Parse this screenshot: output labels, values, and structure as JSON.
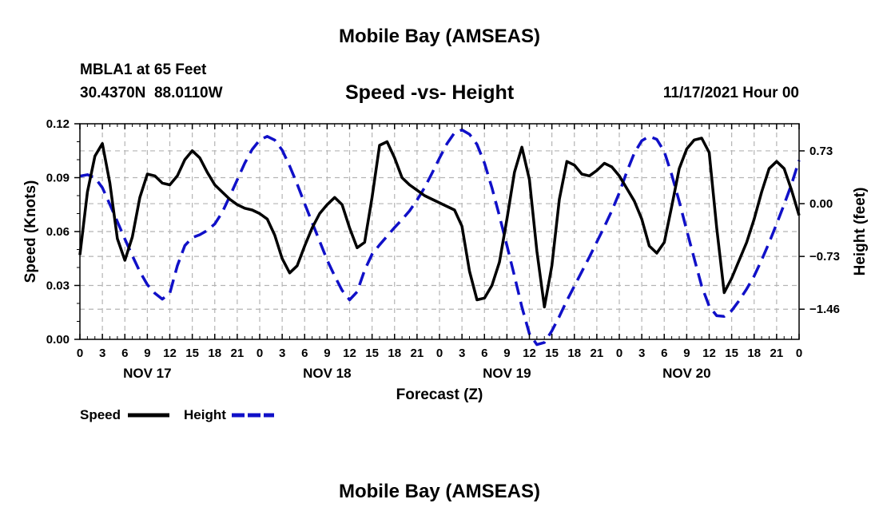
{
  "header": {
    "title": "Mobile Bay (AMSEAS)",
    "station": "MBLA1 at 65 Feet",
    "coords": "30.4370N  88.0110W",
    "subtitle": "Speed -vs- Height",
    "datetime": "11/17/2021 Hour 00"
  },
  "footer_title": "Mobile Bay (AMSEAS)",
  "colors": {
    "speed": "#000000",
    "height": "#1010c8",
    "grid": "#b4b4b4"
  },
  "chart_data": {
    "type": "line",
    "title": "Speed -vs- Height",
    "xlabel": "Forecast (Z)",
    "ylabel_left": "Speed (Knots)",
    "ylabel_right": "Height (feet)",
    "x_unit": "hours from 11/17/2021 00Z",
    "xlim": [
      0,
      96
    ],
    "ylim_left": [
      0,
      0.12
    ],
    "ylim_right": [
      -1.877,
      1.105
    ],
    "left_ticks": [
      "0.00",
      "0.03",
      "0.06",
      "0.09",
      "0.12"
    ],
    "right_ticks": [
      "0.73",
      "0.00",
      "-0.73",
      "-1.46"
    ],
    "right_tick_values": [
      0.73,
      0,
      -0.73,
      -1.46
    ],
    "x_tick_labels": [
      "0",
      "3",
      "6",
      "9",
      "12",
      "15",
      "18",
      "21",
      "0",
      "3",
      "6",
      "9",
      "12",
      "15",
      "18",
      "21",
      "0",
      "3",
      "6",
      "9",
      "12",
      "15",
      "18",
      "21",
      "0",
      "3",
      "6",
      "9",
      "12",
      "15",
      "18",
      "21",
      "0"
    ],
    "day_labels": [
      {
        "label": "NOV 17",
        "hour": 9
      },
      {
        "label": "NOV 18",
        "hour": 33
      },
      {
        "label": "NOV 19",
        "hour": 57
      },
      {
        "label": "NOV 20",
        "hour": 81
      }
    ],
    "grid": true,
    "legend": [
      {
        "name": "Speed",
        "style": "solid"
      },
      {
        "name": "Height",
        "style": "dashed"
      }
    ],
    "series": [
      {
        "name": "Speed",
        "axis": "left",
        "points": [
          [
            0,
            0.047
          ],
          [
            1,
            0.082
          ],
          [
            2,
            0.102
          ],
          [
            3,
            0.109
          ],
          [
            4,
            0.087
          ],
          [
            5,
            0.056
          ],
          [
            6,
            0.044
          ],
          [
            7,
            0.057
          ],
          [
            8,
            0.079
          ],
          [
            9,
            0.092
          ],
          [
            10,
            0.091
          ],
          [
            11,
            0.087
          ],
          [
            12,
            0.086
          ],
          [
            13,
            0.091
          ],
          [
            14,
            0.1
          ],
          [
            15,
            0.105
          ],
          [
            16,
            0.101
          ],
          [
            17,
            0.093
          ],
          [
            18,
            0.086
          ],
          [
            19,
            0.082
          ],
          [
            20,
            0.078
          ],
          [
            21,
            0.075
          ],
          [
            22,
            0.073
          ],
          [
            23,
            0.072
          ],
          [
            24,
            0.07
          ],
          [
            25,
            0.067
          ],
          [
            26,
            0.058
          ],
          [
            27,
            0.045
          ],
          [
            28,
            0.037
          ],
          [
            29,
            0.041
          ],
          [
            30,
            0.052
          ],
          [
            31,
            0.062
          ],
          [
            32,
            0.07
          ],
          [
            33,
            0.075
          ],
          [
            34,
            0.079
          ],
          [
            35,
            0.075
          ],
          [
            36,
            0.062
          ],
          [
            37,
            0.051
          ],
          [
            38,
            0.054
          ],
          [
            39,
            0.079
          ],
          [
            40,
            0.108
          ],
          [
            41,
            0.11
          ],
          [
            42,
            0.101
          ],
          [
            43,
            0.09
          ],
          [
            44,
            0.086
          ],
          [
            45,
            0.083
          ],
          [
            46,
            0.08
          ],
          [
            47,
            0.078
          ],
          [
            48,
            0.076
          ],
          [
            49,
            0.074
          ],
          [
            50,
            0.072
          ],
          [
            51,
            0.063
          ],
          [
            52,
            0.038
          ],
          [
            53,
            0.022
          ],
          [
            54,
            0.023
          ],
          [
            55,
            0.03
          ],
          [
            56,
            0.043
          ],
          [
            57,
            0.067
          ],
          [
            58,
            0.093
          ],
          [
            59,
            0.107
          ],
          [
            60,
            0.089
          ],
          [
            61,
            0.049
          ],
          [
            62,
            0.018
          ],
          [
            63,
            0.041
          ],
          [
            64,
            0.078
          ],
          [
            65,
            0.099
          ],
          [
            66,
            0.097
          ],
          [
            67,
            0.092
          ],
          [
            68,
            0.091
          ],
          [
            69,
            0.094
          ],
          [
            70,
            0.098
          ],
          [
            71,
            0.096
          ],
          [
            72,
            0.091
          ],
          [
            73,
            0.084
          ],
          [
            74,
            0.077
          ],
          [
            75,
            0.067
          ],
          [
            76,
            0.052
          ],
          [
            77,
            0.048
          ],
          [
            78,
            0.054
          ],
          [
            79,
            0.074
          ],
          [
            80,
            0.095
          ],
          [
            81,
            0.106
          ],
          [
            82,
            0.111
          ],
          [
            83,
            0.112
          ],
          [
            84,
            0.104
          ],
          [
            85,
            0.062
          ],
          [
            86,
            0.026
          ],
          [
            87,
            0.034
          ],
          [
            88,
            0.044
          ],
          [
            89,
            0.054
          ],
          [
            90,
            0.067
          ],
          [
            91,
            0.082
          ],
          [
            92,
            0.095
          ],
          [
            93,
            0.099
          ],
          [
            94,
            0.095
          ],
          [
            95,
            0.083
          ],
          [
            96,
            0.069
          ]
        ]
      },
      {
        "name": "Height",
        "axis": "right",
        "points": [
          [
            0,
            0.38
          ],
          [
            1,
            0.4
          ],
          [
            2,
            0.36
          ],
          [
            3,
            0.22
          ],
          [
            4,
            -0.01
          ],
          [
            5,
            -0.25
          ],
          [
            6,
            -0.49
          ],
          [
            7,
            -0.72
          ],
          [
            8,
            -0.94
          ],
          [
            9,
            -1.12
          ],
          [
            10,
            -1.24
          ],
          [
            11,
            -1.32
          ],
          [
            12,
            -1.24
          ],
          [
            13,
            -0.86
          ],
          [
            14,
            -0.58
          ],
          [
            15,
            -0.47
          ],
          [
            16,
            -0.43
          ],
          [
            17,
            -0.37
          ],
          [
            18,
            -0.28
          ],
          [
            19,
            -0.12
          ],
          [
            20,
            0.1
          ],
          [
            21,
            0.33
          ],
          [
            22,
            0.56
          ],
          [
            23,
            0.75
          ],
          [
            24,
            0.88
          ],
          [
            25,
            0.93
          ],
          [
            26,
            0.88
          ],
          [
            27,
            0.74
          ],
          [
            28,
            0.52
          ],
          [
            29,
            0.27
          ],
          [
            30,
            0.0
          ],
          [
            31,
            -0.26
          ],
          [
            32,
            -0.52
          ],
          [
            33,
            -0.78
          ],
          [
            34,
            -1.0
          ],
          [
            35,
            -1.2
          ],
          [
            36,
            -1.33
          ],
          [
            37,
            -1.22
          ],
          [
            38,
            -0.92
          ],
          [
            39,
            -0.7
          ],
          [
            40,
            -0.57
          ],
          [
            41,
            -0.45
          ],
          [
            42,
            -0.33
          ],
          [
            43,
            -0.22
          ],
          [
            44,
            -0.1
          ],
          [
            45,
            0.05
          ],
          [
            46,
            0.22
          ],
          [
            47,
            0.42
          ],
          [
            48,
            0.63
          ],
          [
            49,
            0.83
          ],
          [
            50,
            0.98
          ],
          [
            51,
            1.02
          ],
          [
            52,
            0.96
          ],
          [
            53,
            0.82
          ],
          [
            54,
            0.56
          ],
          [
            55,
            0.22
          ],
          [
            56,
            -0.17
          ],
          [
            57,
            -0.58
          ],
          [
            58,
            -1.0
          ],
          [
            59,
            -1.43
          ],
          [
            60,
            -1.8
          ],
          [
            61,
            -1.95
          ],
          [
            62,
            -1.92
          ],
          [
            63,
            -1.76
          ],
          [
            64,
            -1.56
          ],
          [
            65,
            -1.34
          ],
          [
            66,
            -1.14
          ],
          [
            67,
            -0.94
          ],
          [
            68,
            -0.74
          ],
          [
            69,
            -0.53
          ],
          [
            70,
            -0.32
          ],
          [
            71,
            -0.1
          ],
          [
            72,
            0.15
          ],
          [
            73,
            0.44
          ],
          [
            74,
            0.7
          ],
          [
            75,
            0.87
          ],
          [
            76,
            0.93
          ],
          [
            77,
            0.89
          ],
          [
            78,
            0.72
          ],
          [
            79,
            0.4
          ],
          [
            80,
            0.03
          ],
          [
            81,
            -0.37
          ],
          [
            82,
            -0.76
          ],
          [
            83,
            -1.14
          ],
          [
            84,
            -1.42
          ],
          [
            85,
            -1.55
          ],
          [
            86,
            -1.56
          ],
          [
            87,
            -1.48
          ],
          [
            88,
            -1.34
          ],
          [
            89,
            -1.18
          ],
          [
            90,
            -1.0
          ],
          [
            91,
            -0.78
          ],
          [
            92,
            -0.54
          ],
          [
            93,
            -0.28
          ],
          [
            94,
            -0.01
          ],
          [
            95,
            0.27
          ],
          [
            96,
            0.6
          ]
        ]
      }
    ]
  }
}
